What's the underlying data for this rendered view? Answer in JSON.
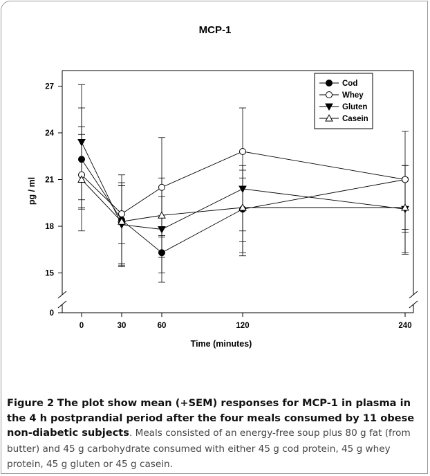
{
  "figure": {
    "caption_label": "Figure 2",
    "caption_bold": "The plot show mean (+SEM) responses for MCP-1 in plasma in the 4 h postprandial period after the four meals consumed by 11 obese non-diabetic subjects",
    "caption_rest": ". Meals consisted of an energy-free soup plus 80 g fat (from butter) and 45 g carbohydrate consumed with either 45 g cod protein, 45 g whey protein, 45 g gluten or 45 g casein."
  },
  "chart_data": {
    "type": "line",
    "title": "MCP-1",
    "xlabel": "Time (minutes)",
    "ylabel": "pg / ml",
    "x": [
      0,
      30,
      60,
      120,
      240
    ],
    "x_ticks": [
      "0",
      "30",
      "60",
      "120",
      "240"
    ],
    "y_ticks": [
      "15",
      "18",
      "21",
      "24",
      "27"
    ],
    "y_zero_tick": "0",
    "ylim": [
      14,
      28
    ],
    "y_axis_break": true,
    "legend_position": "top-right",
    "grid": false,
    "series": [
      {
        "name": "Cod",
        "marker": "circle-filled",
        "values": [
          22.3,
          18.4,
          16.3,
          19.1,
          21.0
        ],
        "err_upper": [
          24.4,
          20.6,
          17.3,
          21.1,
          21.9
        ],
        "err_lower": [
          19.1,
          15.4,
          15.0,
          17.7,
          16.3
        ]
      },
      {
        "name": "Whey",
        "marker": "circle-open",
        "values": [
          21.3,
          18.8,
          20.5,
          22.8,
          21.0
        ],
        "err_upper": [
          25.6,
          21.3,
          23.7,
          25.6,
          24.1
        ],
        "err_lower": [
          17.7,
          15.5,
          17.4,
          16.3,
          17.8
        ]
      },
      {
        "name": "Gluten",
        "marker": "triangle-down-filled",
        "values": [
          23.4,
          18.1,
          17.8,
          20.4,
          19.1
        ],
        "err_upper": [
          27.1,
          20.6,
          19.9,
          21.9,
          21.9
        ],
        "err_lower": [
          19.7,
          15.6,
          14.4,
          17.0,
          17.6
        ]
      },
      {
        "name": "Casein",
        "marker": "triangle-up-open",
        "values": [
          21.0,
          18.3,
          18.7,
          19.2,
          19.2
        ],
        "err_upper": [
          23.9,
          20.8,
          21.1,
          21.6,
          21.1
        ],
        "err_lower": [
          19.2,
          16.9,
          16.0,
          16.1,
          16.2
        ]
      }
    ]
  }
}
